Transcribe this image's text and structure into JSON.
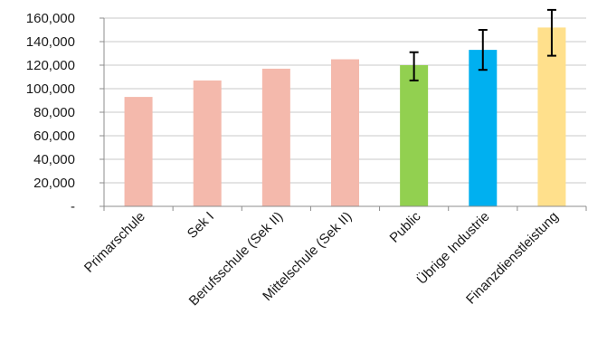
{
  "chart_data": {
    "type": "bar",
    "title": "",
    "xlabel": "",
    "ylabel": "",
    "ylim": [
      0,
      160000
    ],
    "yticks": [
      0,
      20000,
      40000,
      60000,
      80000,
      100000,
      120000,
      140000,
      160000
    ],
    "ytick_labels": [
      "-",
      "20,000",
      "40,000",
      "60,000",
      "80,000",
      "100,000",
      "120,000",
      "140,000",
      "160,000"
    ],
    "grid": true,
    "legend": "none",
    "categories": [
      "Primarschule",
      "Sek I",
      "Berufsschule (Sek II)",
      "Mittelschule (Sek II)",
      "Public",
      "Übrige Industrie",
      "Finanzdienstleistung"
    ],
    "values": [
      93000,
      107000,
      117000,
      125000,
      120000,
      133000,
      152000
    ],
    "error_low": [
      null,
      null,
      null,
      null,
      107000,
      116000,
      128000
    ],
    "error_high": [
      null,
      null,
      null,
      null,
      131000,
      150000,
      167000
    ],
    "colors": [
      "#f4b9ac",
      "#f4b9ac",
      "#f4b9ac",
      "#f4b9ac",
      "#92d050",
      "#00b0f0",
      "#ffe08c"
    ],
    "grid_color": "#c8c8c8",
    "axis_color": "#8c8c8c",
    "error_color": "#000000"
  }
}
